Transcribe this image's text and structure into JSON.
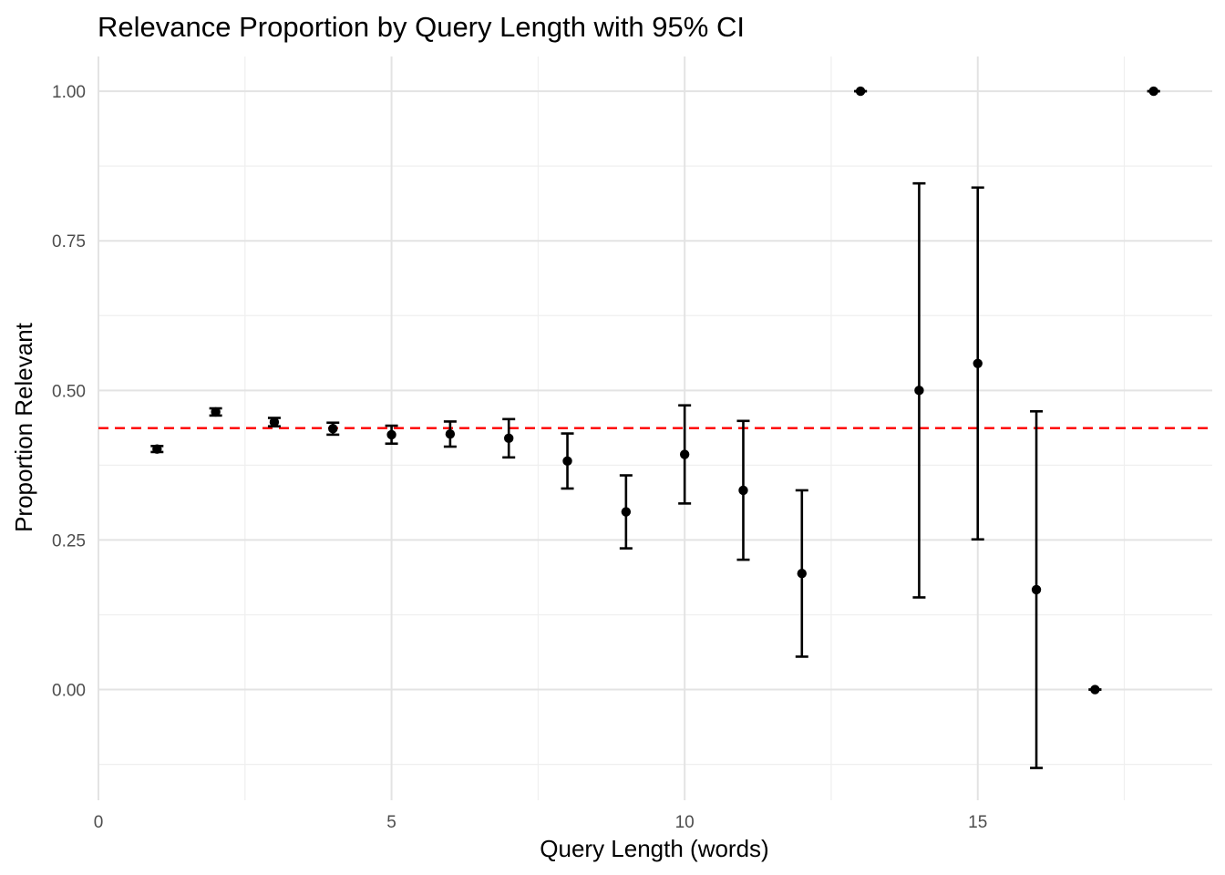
{
  "chart_data": {
    "type": "scatter",
    "title": "Relevance Proportion by Query Length with 95% CI",
    "xlabel": "Query Length (words)",
    "ylabel": "Proportion Relevant",
    "xlim": [
      0,
      19
    ],
    "ylim": [
      -0.185,
      1.058
    ],
    "x_ticks": [
      0,
      5,
      10,
      15
    ],
    "x_tick_labels": [
      "0",
      "5",
      "10",
      "15"
    ],
    "y_ticks": [
      0,
      0.25,
      0.5,
      0.75,
      1
    ],
    "y_tick_labels": [
      "0.00",
      "0.25",
      "0.50",
      "0.75",
      "1.00"
    ],
    "grid": true,
    "reference_line": {
      "y": 0.437,
      "color": "#ff0000",
      "style": "dashed"
    },
    "point_color": "#000000",
    "series": [
      {
        "points": [
          {
            "x": 1,
            "y": 0.402,
            "lower": 0.397,
            "upper": 0.407
          },
          {
            "x": 2,
            "y": 0.464,
            "lower": 0.458,
            "upper": 0.47
          },
          {
            "x": 3,
            "y": 0.447,
            "lower": 0.44,
            "upper": 0.454
          },
          {
            "x": 4,
            "y": 0.436,
            "lower": 0.426,
            "upper": 0.446
          },
          {
            "x": 5,
            "y": 0.426,
            "lower": 0.411,
            "upper": 0.441
          },
          {
            "x": 6,
            "y": 0.427,
            "lower": 0.406,
            "upper": 0.448
          },
          {
            "x": 7,
            "y": 0.42,
            "lower": 0.388,
            "upper": 0.452
          },
          {
            "x": 8,
            "y": 0.382,
            "lower": 0.336,
            "upper": 0.428
          },
          {
            "x": 9,
            "y": 0.297,
            "lower": 0.236,
            "upper": 0.358
          },
          {
            "x": 10,
            "y": 0.393,
            "lower": 0.311,
            "upper": 0.475
          },
          {
            "x": 11,
            "y": 0.333,
            "lower": 0.217,
            "upper": 0.449
          },
          {
            "x": 12,
            "y": 0.194,
            "lower": 0.055,
            "upper": 0.333
          },
          {
            "x": 13,
            "y": 1.0,
            "lower": 1.0,
            "upper": 1.0
          },
          {
            "x": 14,
            "y": 0.5,
            "lower": 0.154,
            "upper": 0.846
          },
          {
            "x": 15,
            "y": 0.545,
            "lower": 0.251,
            "upper": 0.839
          },
          {
            "x": 16,
            "y": 0.167,
            "lower": -0.131,
            "upper": 0.465
          },
          {
            "x": 17,
            "y": 0.0,
            "lower": 0.0,
            "upper": 0.0
          },
          {
            "x": 18,
            "y": 1.0,
            "lower": 1.0,
            "upper": 1.0
          }
        ]
      }
    ]
  }
}
